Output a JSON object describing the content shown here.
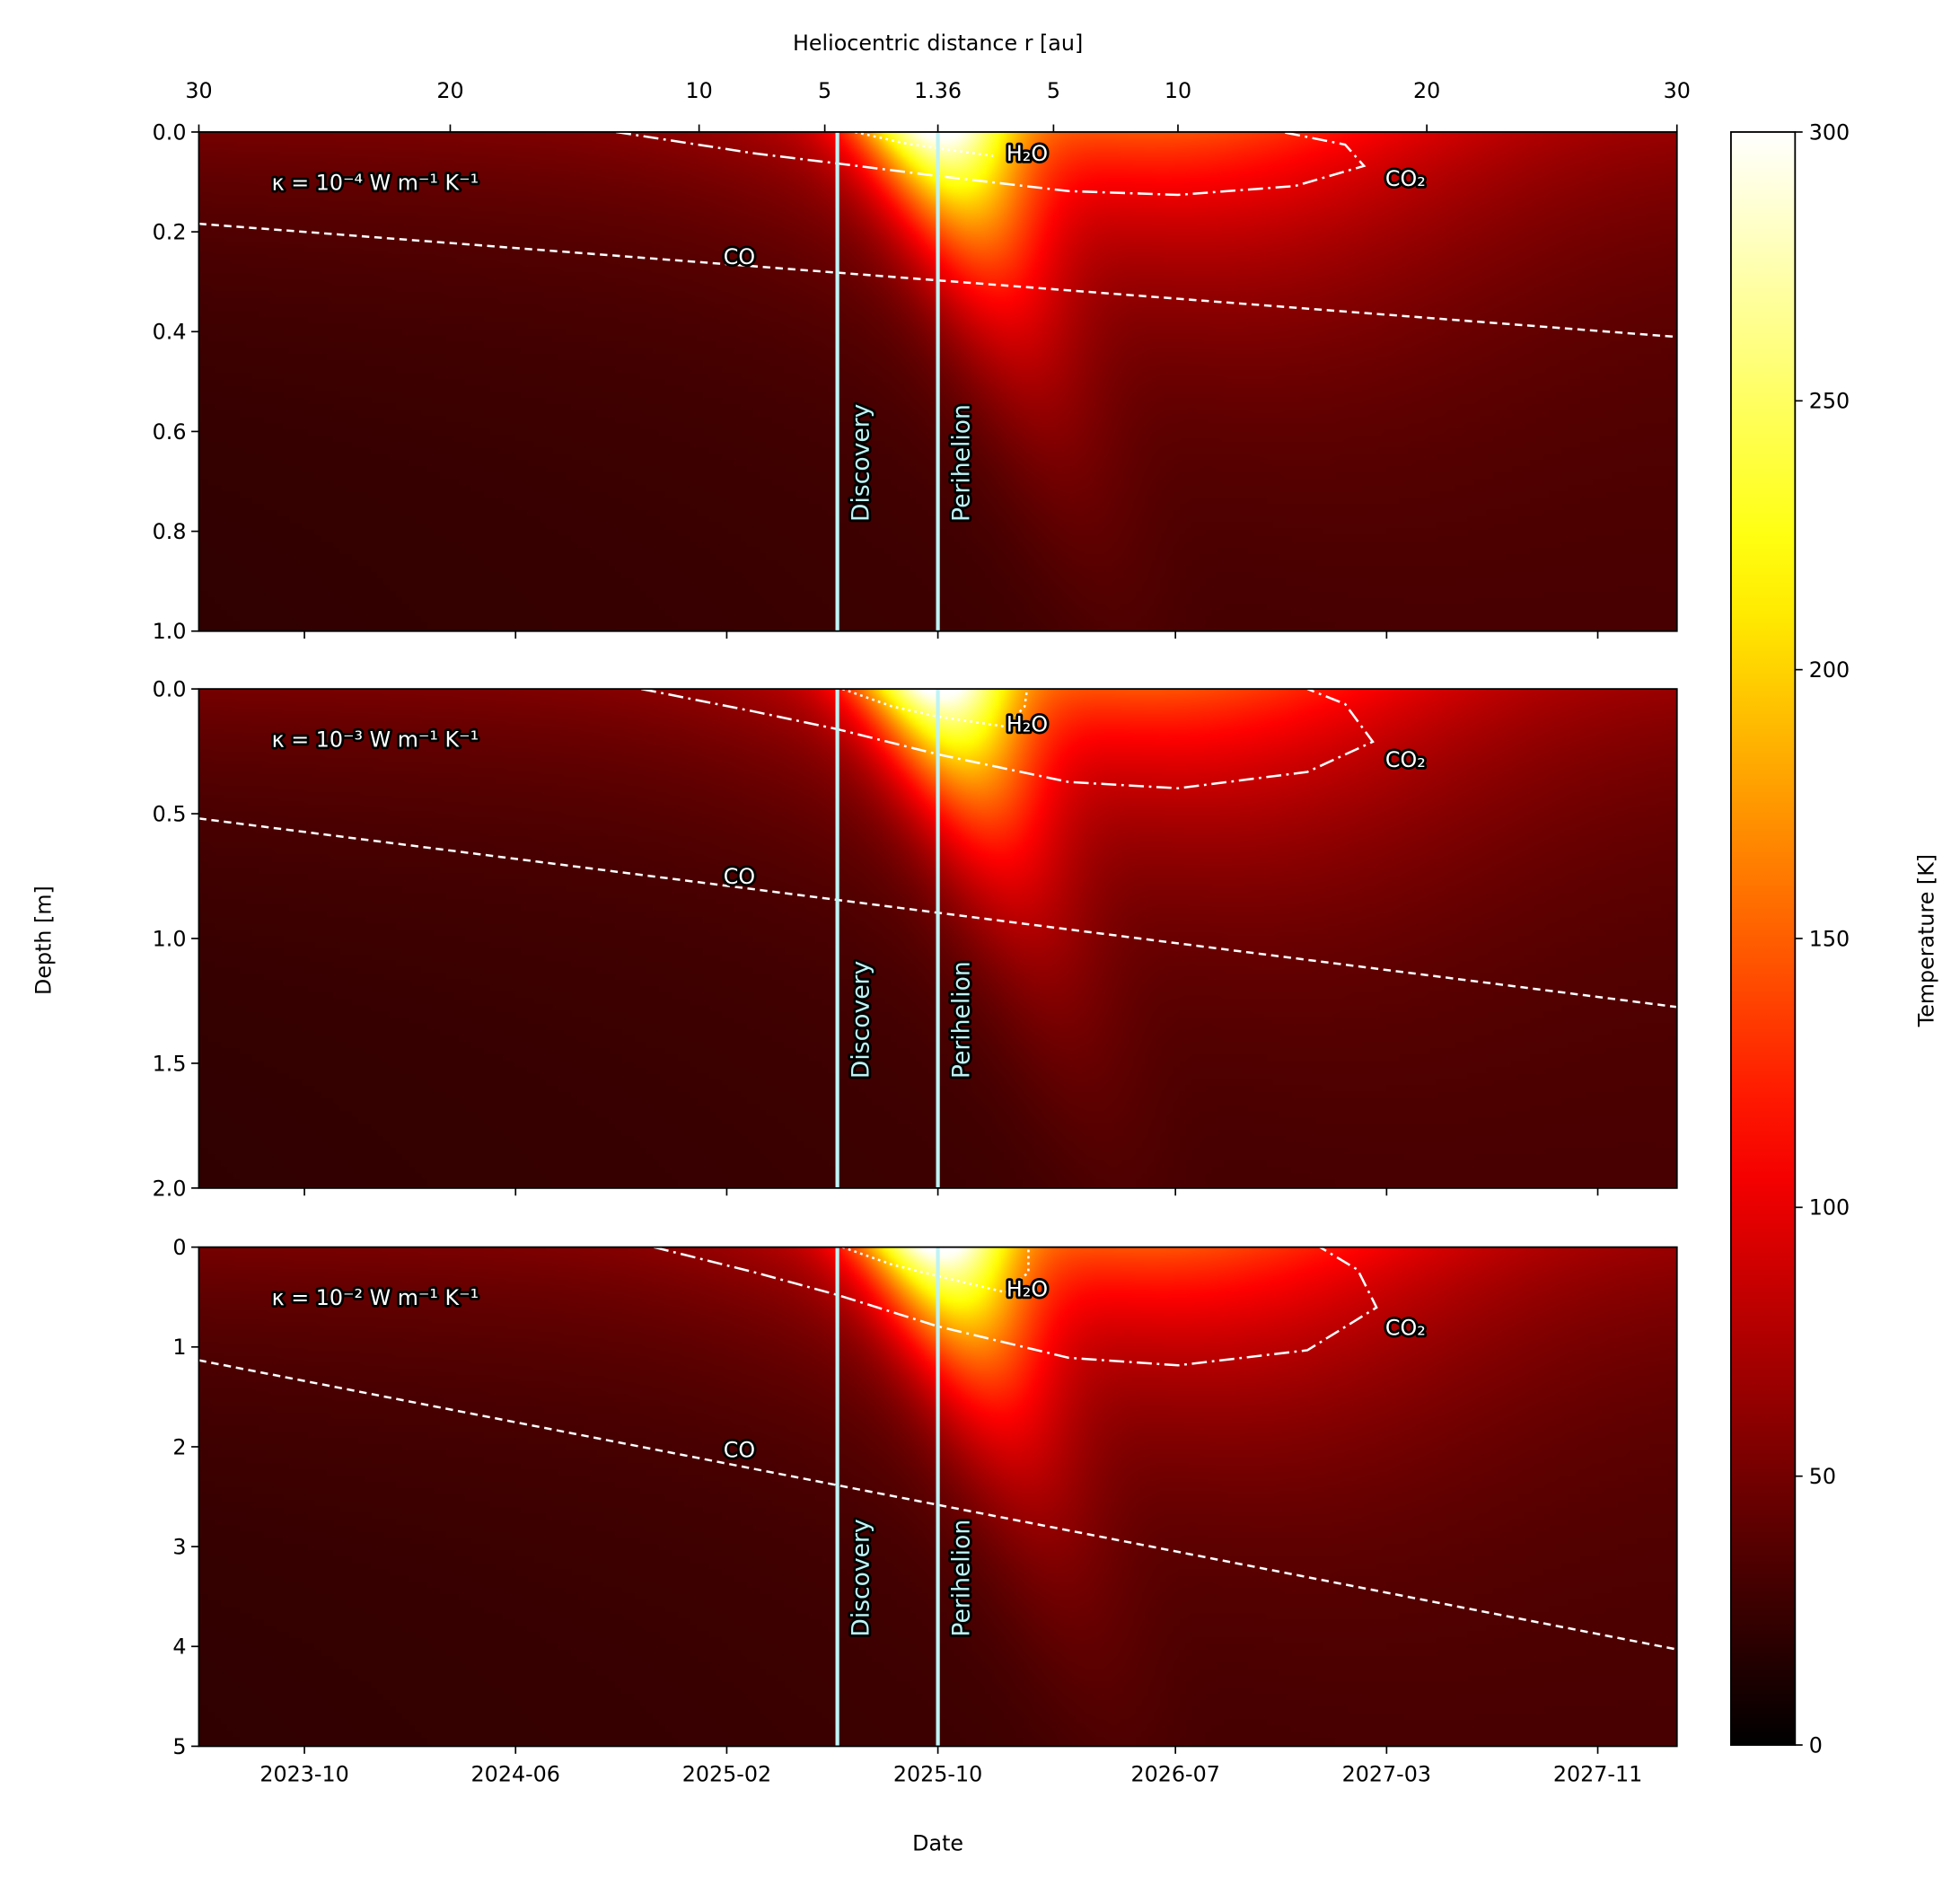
{
  "chart_data": {
    "type": "heatmap",
    "xlabel": "Date",
    "top_xlabel": "Heliocentric distance r [au]",
    "shared_ylabel": "Depth [m]",
    "x_ticks": [
      "2023-10",
      "2024-06",
      "2025-02",
      "2025-10",
      "2026-07",
      "2027-03",
      "2027-11"
    ],
    "x_range": [
      "2023-06",
      "2028-01"
    ],
    "top_ticks": [
      "30",
      "20",
      "10",
      "5",
      "1.36",
      "5",
      "10",
      "20",
      "30"
    ],
    "vlines": [
      {
        "label": "Discovery",
        "date": "2025-06",
        "color": "#bff3f5"
      },
      {
        "label": "Perihelion",
        "date": "2025-10",
        "color": "#bff3f5"
      }
    ],
    "colorbar": {
      "label": "Temperature [K]",
      "colormap": "hot",
      "range": [
        0,
        300
      ],
      "ticks": [
        "0",
        "50",
        "100",
        "150",
        "200",
        "250",
        "300"
      ]
    },
    "panels": [
      {
        "annotation": "κ = 10⁻⁴ W m⁻¹ K⁻¹",
        "ylim": [
          1.0,
          0.0
        ],
        "yticks": [
          "0.0",
          "0.2",
          "0.4",
          "0.6",
          "0.8",
          "1.0"
        ],
        "contours": [
          {
            "label": "H₂O",
            "style": "dotted"
          },
          {
            "label": "CO₂",
            "style": "dash-dot"
          },
          {
            "label": "CO",
            "style": "dashed"
          }
        ]
      },
      {
        "annotation": "κ = 10⁻³ W m⁻¹ K⁻¹",
        "ylim": [
          2.0,
          0.0
        ],
        "yticks": [
          "0.0",
          "0.5",
          "1.0",
          "1.5",
          "2.0"
        ],
        "contours": [
          {
            "label": "H₂O",
            "style": "dotted"
          },
          {
            "label": "CO₂",
            "style": "dash-dot"
          },
          {
            "label": "CO",
            "style": "dashed"
          }
        ]
      },
      {
        "annotation": "κ = 10⁻² W m⁻¹ K⁻¹",
        "ylim": [
          5,
          0
        ],
        "yticks": [
          "0",
          "1",
          "2",
          "3",
          "4",
          "5"
        ],
        "contours": [
          {
            "label": "H₂O",
            "style": "dotted"
          },
          {
            "label": "CO₂",
            "style": "dash-dot"
          },
          {
            "label": "CO",
            "style": "dashed"
          }
        ]
      }
    ]
  }
}
